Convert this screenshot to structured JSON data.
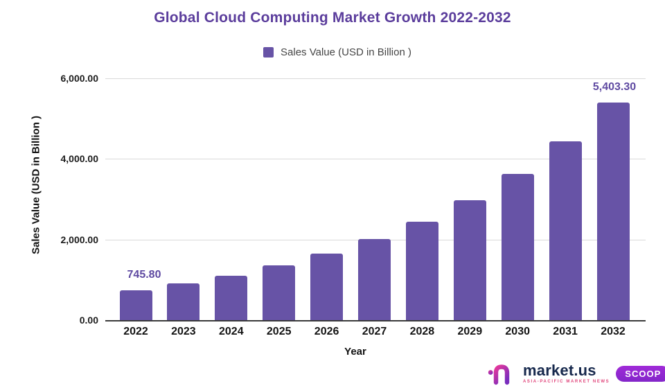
{
  "title": {
    "text": "Global Cloud Computing Market Growth 2022-2032",
    "color": "#5b3d9c"
  },
  "legend": {
    "label": "Sales Value (USD in Billion )",
    "swatch_color": "#6753a6"
  },
  "chart_data": {
    "type": "bar",
    "title": "Global Cloud Computing Market Growth 2022-2032",
    "xlabel": "Year",
    "ylabel": "Sales Value (USD in Billion )",
    "categories": [
      "2022",
      "2023",
      "2024",
      "2025",
      "2026",
      "2027",
      "2028",
      "2029",
      "2030",
      "2031",
      "2032"
    ],
    "values": [
      745.8,
      909.1,
      1108.2,
      1350.9,
      1646.7,
      2007.3,
      2446.9,
      2982.8,
      3636.0,
      4432.3,
      5403.3
    ],
    "ylim": [
      0,
      6000
    ],
    "yticks": [
      {
        "value": 0,
        "label": "0.00"
      },
      {
        "value": 2000,
        "label": "2,000.00"
      },
      {
        "value": 4000,
        "label": "4,000.00"
      },
      {
        "value": 6000,
        "label": "6,000.00"
      }
    ],
    "grid": true,
    "legend_position": "top",
    "bar_color": "#6753a6",
    "data_labels": [
      {
        "index": 0,
        "text": "745.80"
      },
      {
        "index": 10,
        "text": "5,403.30"
      }
    ],
    "data_label_color": "#5e49a1"
  },
  "footer_logo": {
    "brand": "market.us",
    "brand_color": "#17294d",
    "tagline": "ASIA-PACIFIC MARKET NEWS",
    "tagline_color": "#e0457b",
    "badge": "SCOOP",
    "badge_color": "#9126d3",
    "icon_colors": {
      "start": "#e5379b",
      "end": "#7a2dbd"
    }
  }
}
